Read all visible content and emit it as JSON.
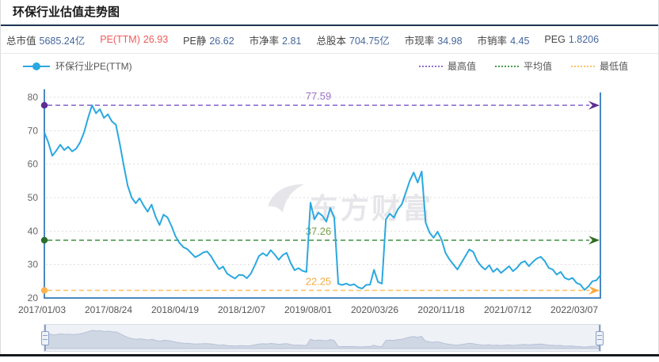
{
  "page": {
    "title": "环保行业估值走势图"
  },
  "stats": {
    "highlight_color": "#f05a5a",
    "items": [
      {
        "label": "总市值",
        "value": "5685.24亿"
      },
      {
        "label": "PE(TTM)",
        "value": "26.93"
      },
      {
        "label": "PE静",
        "value": "26.62"
      },
      {
        "label": "市净率",
        "value": "2.81"
      },
      {
        "label": "总股本",
        "value": "704.75亿"
      },
      {
        "label": "市现率",
        "value": "34.98"
      },
      {
        "label": "市销率",
        "value": "4.45"
      },
      {
        "label": "PEG",
        "value": "1.8206"
      }
    ]
  },
  "legend": {
    "series_label": "环保行业PE(TTM)"
  },
  "watermark": "东方财富",
  "chart_data": {
    "type": "line",
    "title": "环保行业估值走势图",
    "series_name": "环保行业PE(TTM)",
    "line_color": "#2ba8e0",
    "axis_color": "#4b87c3",
    "grid": "dotted-horizontal",
    "ylim": [
      20,
      80
    ],
    "y_ticks": [
      20,
      30,
      40,
      50,
      60,
      70,
      80
    ],
    "x_tick_labels": [
      "2017/01/03",
      "2017/08/24",
      "2018/04/19",
      "2018/12/07",
      "2019/08/01",
      "2020/03/26",
      "2020/11/18",
      "2021/07/12",
      "2022/03/07"
    ],
    "max": {
      "label": "最高值",
      "value": 77.59,
      "line_color": "#8f6fd2",
      "dot_color": "#5e2d91",
      "arrow_color": "#5e2d91",
      "text_color": "#9a6fc8"
    },
    "avg": {
      "label": "平均值",
      "value": 37.26,
      "line_color": "#4e9a50",
      "dot_color": "#2c6e2c",
      "arrow_color": "#2f6b1f",
      "text_color": "#76a04a"
    },
    "min": {
      "label": "最低值",
      "value": 22.25,
      "line_color": "#ffc36a",
      "dot_color": "#ffb44f",
      "arrow_color": "#f9a93f",
      "text_color": "#f6ab40"
    },
    "values": [
      69.5,
      66.5,
      62.5,
      64,
      65.8,
      64.2,
      65.2,
      63.8,
      64.6,
      66.5,
      69.5,
      73.8,
      77.59,
      75.2,
      76.4,
      73.8,
      74.9,
      72.8,
      71.8,
      66,
      59.5,
      53.5,
      50,
      48.3,
      49.8,
      47.6,
      45.8,
      47.9,
      44.3,
      41.8,
      44.9,
      44.1,
      41.5,
      38.5,
      36.5,
      35.2,
      34.6,
      33.4,
      32.2,
      32.8,
      33.6,
      33.9,
      32.4,
      30.4,
      28.6,
      29.4,
      27.3,
      26.5,
      25.8,
      26.9,
      26.8,
      25.9,
      27.3,
      29.8,
      32.5,
      33.4,
      32.6,
      34.3,
      33,
      31.4,
      32.8,
      33.5,
      30.5,
      28.3,
      28.9,
      28.1,
      27.8,
      48.5,
      43.5,
      45.5,
      44.6,
      42.8,
      46.9,
      44,
      24.2,
      23.9,
      24.3,
      23.8,
      24.1,
      23.2,
      22.8,
      23.9,
      24,
      28.4,
      24.8,
      24.3,
      43.5,
      45.2,
      44,
      46.5,
      48,
      51.5,
      55,
      57.5,
      54.5,
      57.8,
      42.5,
      39.5,
      38,
      39.8,
      37.5,
      33.5,
      31.5,
      30,
      28.5,
      30.5,
      32.5,
      34.5,
      33.8,
      31,
      29.5,
      28.5,
      29.8,
      27.8,
      28.8,
      27.5,
      28.5,
      29.5,
      28,
      29,
      30.5,
      31,
      29.5,
      30.8,
      31.8,
      32.3,
      31,
      29,
      28.5,
      27,
      27.8,
      26,
      25.5,
      26,
      24.5,
      24,
      22.4,
      23.5,
      25,
      25.3,
      26.8
    ]
  }
}
